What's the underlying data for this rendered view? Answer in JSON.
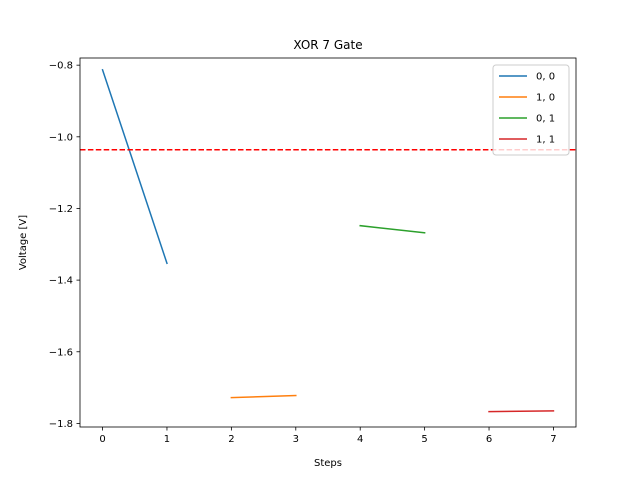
{
  "chart_data": {
    "type": "line",
    "title": "XOR 7 Gate",
    "xlabel": "Steps",
    "ylabel": "Voltage [V]",
    "xlim": [
      -0.35,
      7.35
    ],
    "ylim": [
      -1.81,
      -0.78
    ],
    "xticks": [
      0,
      1,
      2,
      3,
      4,
      5,
      6,
      7
    ],
    "xtick_labels": [
      "0",
      "1",
      "2",
      "3",
      "4",
      "5",
      "6",
      "7"
    ],
    "yticks": [
      -1.8,
      -1.6,
      -1.4,
      -1.2,
      -1.0,
      -0.8
    ],
    "ytick_labels": [
      "−1.8",
      "−1.6",
      "−1.4",
      "−1.2",
      "−1.0",
      "−0.8"
    ],
    "grid": false,
    "legend_position": "top-right",
    "series": [
      {
        "name": "0, 0",
        "color": "#1f77b4",
        "x": [
          0,
          1
        ],
        "y": [
          -0.813,
          -1.353
        ]
      },
      {
        "name": "1, 0",
        "color": "#ff7f0e",
        "x": [
          2,
          3
        ],
        "y": [
          -1.728,
          -1.722
        ]
      },
      {
        "name": "0, 1",
        "color": "#2ca02c",
        "x": [
          4,
          5
        ],
        "y": [
          -1.248,
          -1.268
        ]
      },
      {
        "name": "1, 1",
        "color": "#d62728",
        "x": [
          6,
          7
        ],
        "y": [
          -1.767,
          -1.765
        ]
      }
    ],
    "threshold": {
      "y": -1.036,
      "color": "#ff0000",
      "style": "dashed"
    }
  }
}
